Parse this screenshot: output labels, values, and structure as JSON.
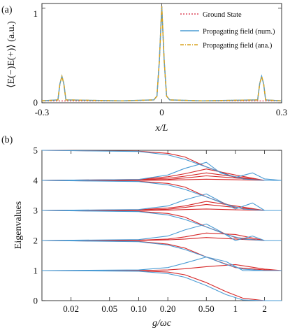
{
  "colors": {
    "ground_state": "#d7263d",
    "propagating_num": "#4a9bd4",
    "propagating_ana": "#d8a320",
    "eigen_a": "#d62728",
    "eigen_b": "#4a9bd4"
  },
  "chart_data": [
    {
      "panel": "(a)",
      "type": "line",
      "title": "",
      "xlabel": "x/L",
      "ylabel": "⟨E(−)E(+)⟩ (a.u.)",
      "xlim": [
        -0.3,
        0.3
      ],
      "ylim": [
        0,
        1.05
      ],
      "xticks": [
        "-0.3",
        "0",
        "0.3"
      ],
      "yticks": [
        "0",
        "1"
      ],
      "legend_position": "top-right",
      "series": [
        {
          "name": "Ground State",
          "style": "dotted",
          "color": "#d7263d",
          "x": [
            -0.3,
            -0.1,
            -0.05,
            -0.02,
            -0.012,
            -0.006,
            0,
            0.006,
            0.012,
            0.02,
            0.05,
            0.1,
            0.3
          ],
          "y": [
            0.02,
            0.02,
            0.025,
            0.03,
            0.07,
            0.45,
            1.02,
            0.45,
            0.07,
            0.03,
            0.025,
            0.02,
            0.02
          ]
        },
        {
          "name": "Propagating field (num.)",
          "style": "solid",
          "color": "#4a9bd4",
          "x": [
            -0.3,
            -0.26,
            -0.255,
            -0.25,
            -0.245,
            -0.24,
            -0.1,
            -0.02,
            -0.012,
            -0.006,
            0,
            0.006,
            0.012,
            0.02,
            0.1,
            0.24,
            0.245,
            0.25,
            0.255,
            0.26,
            0.3
          ],
          "y": [
            0.02,
            0.03,
            0.2,
            0.28,
            0.2,
            0.03,
            0.02,
            0.03,
            0.07,
            0.45,
            1.02,
            0.45,
            0.07,
            0.03,
            0.02,
            0.03,
            0.2,
            0.28,
            0.2,
            0.03,
            0.02
          ]
        },
        {
          "name": "Propagating field (ana.)",
          "style": "dashdot",
          "color": "#d8a320",
          "x": [
            -0.3,
            -0.26,
            -0.255,
            -0.25,
            -0.245,
            -0.24,
            -0.1,
            -0.02,
            -0.012,
            -0.006,
            0,
            0.006,
            0.012,
            0.02,
            0.1,
            0.24,
            0.245,
            0.25,
            0.255,
            0.26,
            0.3
          ],
          "y": [
            0.02,
            0.03,
            0.2,
            0.28,
            0.2,
            0.03,
            0.02,
            0.03,
            0.07,
            0.45,
            1.02,
            0.45,
            0.07,
            0.03,
            0.02,
            0.03,
            0.2,
            0.28,
            0.2,
            0.03,
            0.02
          ]
        }
      ]
    },
    {
      "panel": "(b)",
      "type": "line",
      "title": "",
      "xlabel": "g/ωc",
      "ylabel": "Eigenvalues",
      "xscale": "log",
      "xlim": [
        0.01,
        3.0
      ],
      "ylim": [
        0,
        5
      ],
      "xticks": [
        "0.02",
        "0.05",
        "0.10",
        "0.20",
        "0.50",
        "1",
        "2"
      ],
      "xtick_values": [
        0.02,
        0.05,
        0.1,
        0.2,
        0.5,
        1,
        2
      ],
      "yticks": [
        "0",
        "1",
        "2",
        "3",
        "4",
        "5"
      ],
      "grid": false,
      "series": [
        {
          "color": "#d62728",
          "x": [
            0.01,
            0.1,
            0.2,
            0.3,
            0.5,
            0.8,
            1.2,
            2.0,
            3.0
          ],
          "y": [
            1.0,
            0.99,
            0.95,
            0.86,
            0.6,
            0.3,
            0.08,
            0.0,
            0.0
          ]
        },
        {
          "color": "#d62728",
          "x": [
            0.01,
            0.1,
            0.2,
            0.3,
            0.5,
            1.0,
            2.0,
            3.0
          ],
          "y": [
            1.0,
            1.0,
            1.02,
            1.06,
            1.13,
            1.2,
            1.05,
            1.0
          ]
        },
        {
          "color": "#4a9bd4",
          "x": [
            0.01,
            0.1,
            0.2,
            0.3,
            0.5,
            0.8,
            1.2,
            2.0,
            3.0
          ],
          "y": [
            1.0,
            0.98,
            0.9,
            0.78,
            0.5,
            0.2,
            0.02,
            0.0,
            0.0
          ]
        },
        {
          "color": "#4a9bd4",
          "x": [
            0.01,
            0.1,
            0.2,
            0.3,
            0.5,
            0.8,
            1.2,
            2.0,
            3.0
          ],
          "y": [
            1.0,
            1.02,
            1.1,
            1.25,
            1.45,
            1.3,
            1.0,
            1.0,
            1.0
          ]
        },
        {
          "color": "#d62728",
          "x": [
            0.01,
            0.1,
            0.2,
            0.3,
            0.5,
            1.0,
            2.0,
            3.0
          ],
          "y": [
            2.0,
            1.97,
            1.88,
            1.75,
            1.45,
            1.1,
            1.02,
            1.0
          ]
        },
        {
          "color": "#d62728",
          "x": [
            0.01,
            0.1,
            0.2,
            0.3,
            0.5,
            1.0,
            2.0,
            3.0
          ],
          "y": [
            2.0,
            2.0,
            2.02,
            2.05,
            2.1,
            2.05,
            2.0,
            2.0
          ]
        },
        {
          "color": "#d62728",
          "x": [
            0.01,
            0.1,
            0.2,
            0.3,
            0.5,
            1.0,
            2.0,
            3.0
          ],
          "y": [
            2.0,
            2.01,
            2.05,
            2.12,
            2.25,
            2.2,
            2.0,
            2.0
          ]
        },
        {
          "color": "#4a9bd4",
          "x": [
            0.01,
            0.1,
            0.2,
            0.3,
            0.5,
            0.7,
            1.0,
            1.5,
            2.0,
            3.0
          ],
          "y": [
            2.0,
            2.03,
            2.15,
            2.35,
            2.55,
            2.3,
            2.0,
            2.15,
            2.0,
            2.0
          ]
        },
        {
          "color": "#4a9bd4",
          "x": [
            0.01,
            0.1,
            0.2,
            0.3,
            0.5,
            0.8,
            1.2,
            2.0,
            3.0
          ],
          "y": [
            2.0,
            1.96,
            1.85,
            1.7,
            1.45,
            1.2,
            1.05,
            1.0,
            1.0
          ]
        },
        {
          "color": "#d62728",
          "x": [
            0.01,
            0.1,
            0.2,
            0.3,
            0.5,
            1.0,
            2.0,
            3.0
          ],
          "y": [
            3.0,
            2.97,
            2.9,
            2.78,
            2.45,
            2.1,
            2.0,
            2.0
          ]
        },
        {
          "color": "#d62728",
          "x": [
            0.01,
            0.1,
            0.2,
            0.3,
            0.5,
            1.0,
            2.0,
            3.0
          ],
          "y": [
            3.0,
            3.0,
            3.01,
            3.03,
            3.05,
            3.02,
            3.0,
            3.0
          ]
        },
        {
          "color": "#d62728",
          "x": [
            0.01,
            0.1,
            0.2,
            0.3,
            0.5,
            1.0,
            2.0,
            3.0
          ],
          "y": [
            3.0,
            3.01,
            3.04,
            3.1,
            3.2,
            3.1,
            3.0,
            3.0
          ]
        },
        {
          "color": "#d62728",
          "x": [
            0.01,
            0.1,
            0.2,
            0.3,
            0.5,
            1.0,
            2.0,
            3.0
          ],
          "y": [
            3.0,
            3.02,
            3.08,
            3.15,
            3.3,
            3.15,
            3.0,
            3.0
          ]
        },
        {
          "color": "#4a9bd4",
          "x": [
            0.01,
            0.1,
            0.2,
            0.3,
            0.5,
            0.7,
            1.0,
            1.5,
            2.0,
            3.0
          ],
          "y": [
            3.0,
            3.03,
            3.15,
            3.35,
            3.55,
            3.3,
            3.05,
            3.25,
            3.0,
            3.0
          ]
        },
        {
          "color": "#4a9bd4",
          "x": [
            0.01,
            0.1,
            0.2,
            0.3,
            0.5,
            0.8,
            1.2,
            2.0,
            3.0
          ],
          "y": [
            3.0,
            2.96,
            2.85,
            2.7,
            2.45,
            2.2,
            2.05,
            2.0,
            2.0
          ]
        },
        {
          "color": "#d62728",
          "x": [
            0.01,
            0.1,
            0.2,
            0.3,
            0.5,
            1.0,
            2.0,
            3.0
          ],
          "y": [
            4.0,
            3.97,
            3.9,
            3.78,
            3.45,
            3.1,
            3.0,
            3.0
          ]
        },
        {
          "color": "#d62728",
          "x": [
            0.01,
            0.1,
            0.2,
            0.3,
            0.5,
            1.0,
            2.0,
            3.0
          ],
          "y": [
            4.0,
            4.0,
            4.01,
            4.02,
            4.04,
            4.02,
            4.0,
            4.0
          ]
        },
        {
          "color": "#d62728",
          "x": [
            0.01,
            0.1,
            0.2,
            0.3,
            0.5,
            1.0,
            2.0,
            3.0
          ],
          "y": [
            4.0,
            4.01,
            4.03,
            4.08,
            4.15,
            4.08,
            4.0,
            4.0
          ]
        },
        {
          "color": "#d62728",
          "x": [
            0.01,
            0.1,
            0.2,
            0.3,
            0.5,
            1.0,
            2.0,
            3.0
          ],
          "y": [
            4.0,
            4.02,
            4.07,
            4.14,
            4.25,
            4.12,
            4.0,
            4.0
          ]
        },
        {
          "color": "#d62728",
          "x": [
            0.01,
            0.1,
            0.2,
            0.3,
            0.5,
            1.0,
            2.0,
            3.0
          ],
          "y": [
            4.0,
            4.03,
            4.12,
            4.22,
            4.38,
            4.18,
            4.0,
            4.0
          ]
        },
        {
          "color": "#4a9bd4",
          "x": [
            0.01,
            0.1,
            0.2,
            0.3,
            0.5,
            0.7,
            1.0,
            1.5,
            2.0,
            3.0
          ],
          "y": [
            4.0,
            4.03,
            4.18,
            4.4,
            4.6,
            4.25,
            4.1,
            4.25,
            4.05,
            4.0
          ]
        },
        {
          "color": "#4a9bd4",
          "x": [
            0.01,
            0.1,
            0.2,
            0.3,
            0.5,
            0.8,
            1.2,
            2.0,
            3.0
          ],
          "y": [
            4.0,
            3.96,
            3.85,
            3.7,
            3.45,
            3.2,
            3.05,
            3.0,
            3.0
          ]
        },
        {
          "color": "#d62728",
          "x": [
            0.01,
            0.1,
            0.2,
            0.3,
            0.5,
            1.0,
            2.0,
            3.0
          ],
          "y": [
            5.0,
            4.97,
            4.9,
            4.78,
            4.45,
            4.1,
            4.0,
            4.0
          ]
        },
        {
          "color": "#4a9bd4",
          "x": [
            0.01,
            0.1,
            0.2,
            0.3,
            0.5,
            0.8,
            1.2,
            2.0,
            3.0
          ],
          "y": [
            5.0,
            4.96,
            4.85,
            4.7,
            4.45,
            4.2,
            4.05,
            4.0,
            4.0
          ]
        }
      ]
    }
  ]
}
